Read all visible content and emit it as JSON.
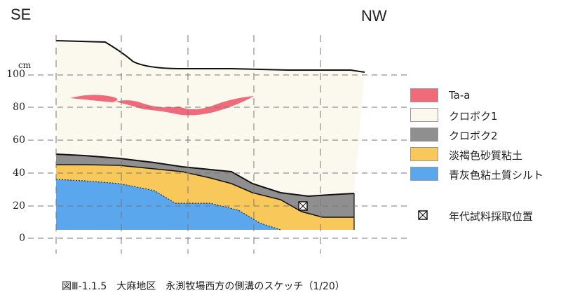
{
  "labels": {
    "left_dir": "SE",
    "right_dir": "NW",
    "unit": "cm",
    "y_ticks": [
      "100",
      "80",
      "60",
      "40",
      "20",
      "0"
    ]
  },
  "legend": [
    {
      "label": "Ta-a",
      "color": "#ef6b7a"
    },
    {
      "label": "クロボク1",
      "color": "#fbf8ee"
    },
    {
      "label": "クロボク2",
      "color": "#8f8f8f"
    },
    {
      "label": "淡褐色砂質粘土",
      "color": "#f8c95a"
    },
    {
      "label": "青灰色粘土質シルト",
      "color": "#5aa7ee"
    }
  ],
  "sample_marker_label": "年代試料採取位置",
  "caption": "図Ⅲ-1.1.5　大麻地区　永渕牧場西方の側溝のスケッチ（1/20）"
}
